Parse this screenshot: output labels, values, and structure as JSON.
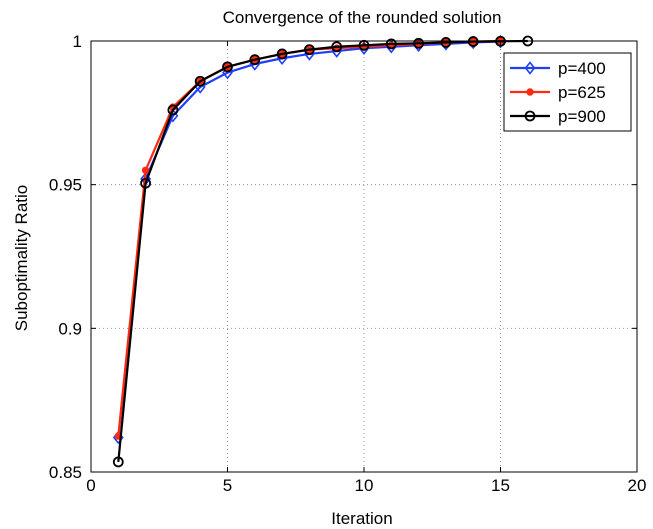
{
  "chart_data": {
    "type": "line",
    "title": "Convergence of the rounded solution",
    "xlabel": "Iteration",
    "ylabel": "Suboptimality Ratio",
    "xlim": [
      0,
      20
    ],
    "ylim": [
      0.85,
      1
    ],
    "xticks": [
      0,
      5,
      10,
      15,
      20
    ],
    "yticks": [
      0.85,
      0.9,
      0.95,
      1
    ],
    "xtick_labels": [
      "0",
      "5",
      "10",
      "15",
      "20"
    ],
    "ytick_labels": [
      "0.85",
      "0.9",
      "0.95",
      "1"
    ],
    "grid": true,
    "legend_position": "top-right",
    "x": [
      1,
      2,
      3,
      4,
      5,
      6,
      7,
      8,
      9,
      10,
      11,
      12,
      13,
      14,
      15,
      16
    ],
    "series": [
      {
        "name": "p=400",
        "color": "#1f3fff",
        "marker": "diamond",
        "values": [
          0.862,
          0.952,
          0.974,
          0.984,
          0.989,
          0.992,
          0.994,
          0.9955,
          0.9965,
          0.9975,
          0.998,
          0.9985,
          0.999,
          0.9995,
          0.9998,
          null
        ]
      },
      {
        "name": "p=625",
        "color": "#ff2a10",
        "marker": "dot",
        "values": [
          0.8625,
          0.955,
          0.977,
          0.986,
          0.991,
          0.9935,
          0.9955,
          0.997,
          0.9975,
          0.998,
          0.9985,
          0.999,
          0.9995,
          0.9998,
          1.0,
          null
        ]
      },
      {
        "name": "p=900",
        "color": "#000000",
        "marker": "circle",
        "values": [
          0.8535,
          0.9505,
          0.976,
          0.986,
          0.991,
          0.9935,
          0.9955,
          0.997,
          0.998,
          0.9985,
          0.999,
          0.9992,
          0.9995,
          0.9998,
          0.9999,
          1.0
        ]
      }
    ]
  }
}
